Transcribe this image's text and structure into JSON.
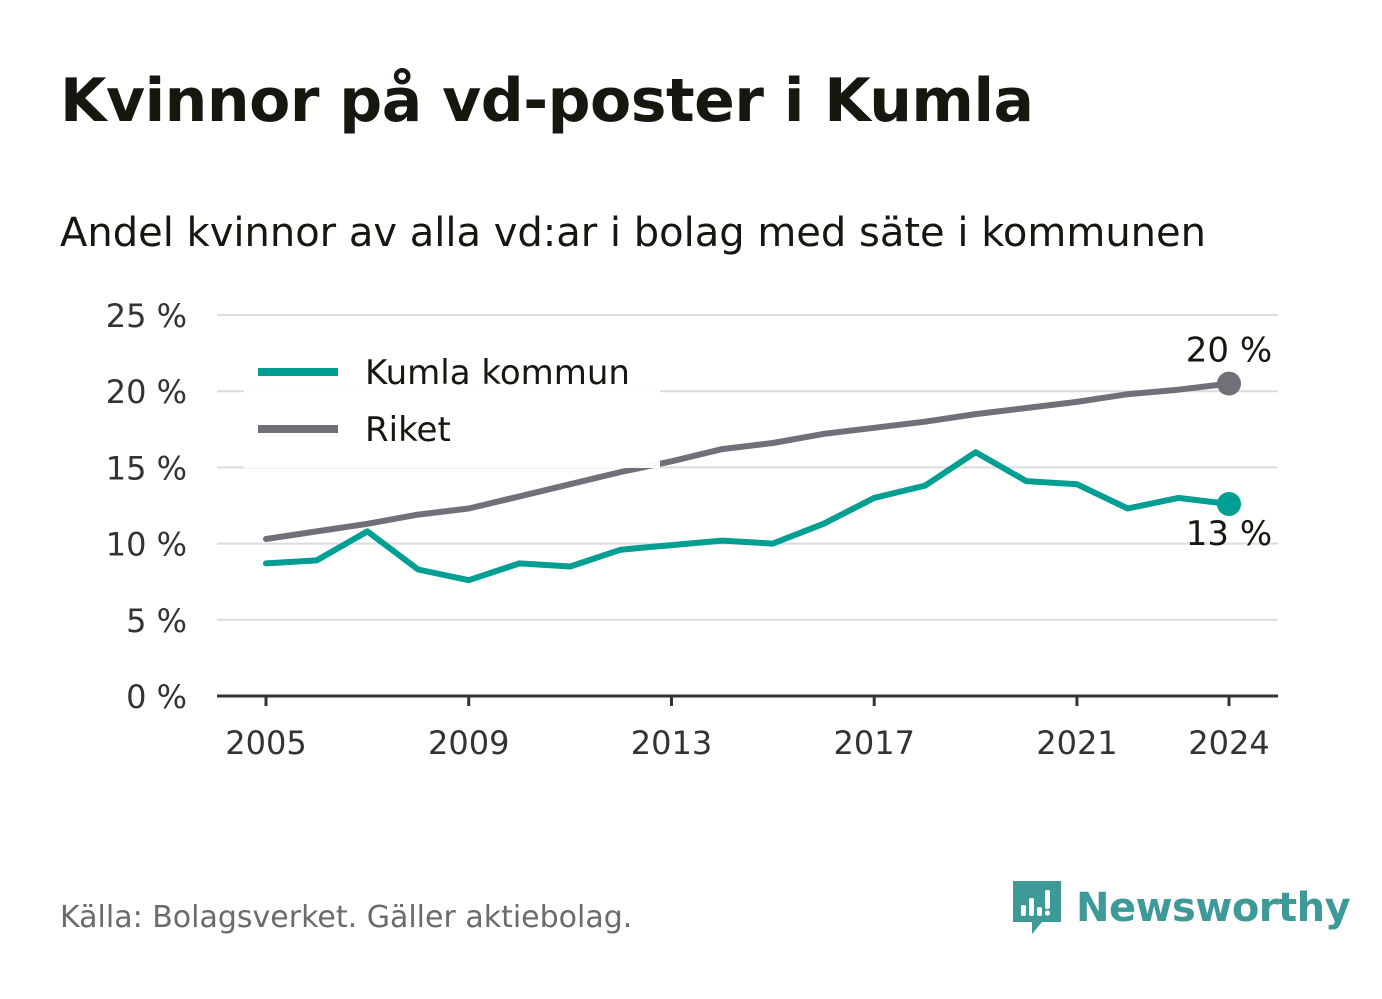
{
  "title": "Kvinnor på vd-poster i Kumla",
  "subtitle": "Andel kvinnor av alla vd:ar i bolag med säte i kommunen",
  "footer": {
    "source": "Källa: Bolagsverket. Gäller aktiebolag.",
    "brand": "Newsworthy"
  },
  "colors": {
    "kumla": "#009e93",
    "riket": "#707078",
    "grid": "#dcdcdc",
    "axis": "#333333",
    "brand": "#3d9a99"
  },
  "chart_data": {
    "type": "line",
    "x": [
      2005,
      2006,
      2007,
      2008,
      2009,
      2010,
      2011,
      2012,
      2013,
      2014,
      2015,
      2016,
      2017,
      2018,
      2019,
      2020,
      2021,
      2022,
      2023,
      2024
    ],
    "xticks": [
      "2005",
      "2009",
      "2013",
      "2017",
      "2021",
      "2024"
    ],
    "yticks": [
      "0 %",
      "5 %",
      "10 %",
      "15 %",
      "20 %",
      "25 %"
    ],
    "ylim": [
      0,
      25
    ],
    "grid": true,
    "legend_position": "top-left",
    "series": [
      {
        "name": "Kumla kommun",
        "color": "#009e93",
        "values": [
          8.7,
          8.9,
          10.8,
          8.3,
          7.6,
          8.7,
          8.5,
          9.6,
          9.9,
          10.2,
          10.0,
          11.3,
          13.0,
          13.8,
          16.0,
          14.1,
          13.9,
          12.3,
          13.0,
          12.6
        ],
        "end_label": "13 %"
      },
      {
        "name": "Riket",
        "color": "#707078",
        "values": [
          10.3,
          10.8,
          11.3,
          11.9,
          12.3,
          13.1,
          13.9,
          14.7,
          15.4,
          16.2,
          16.6,
          17.2,
          17.6,
          18.0,
          18.5,
          18.9,
          19.3,
          19.8,
          20.1,
          20.5
        ],
        "end_label": "20 %"
      }
    ]
  }
}
